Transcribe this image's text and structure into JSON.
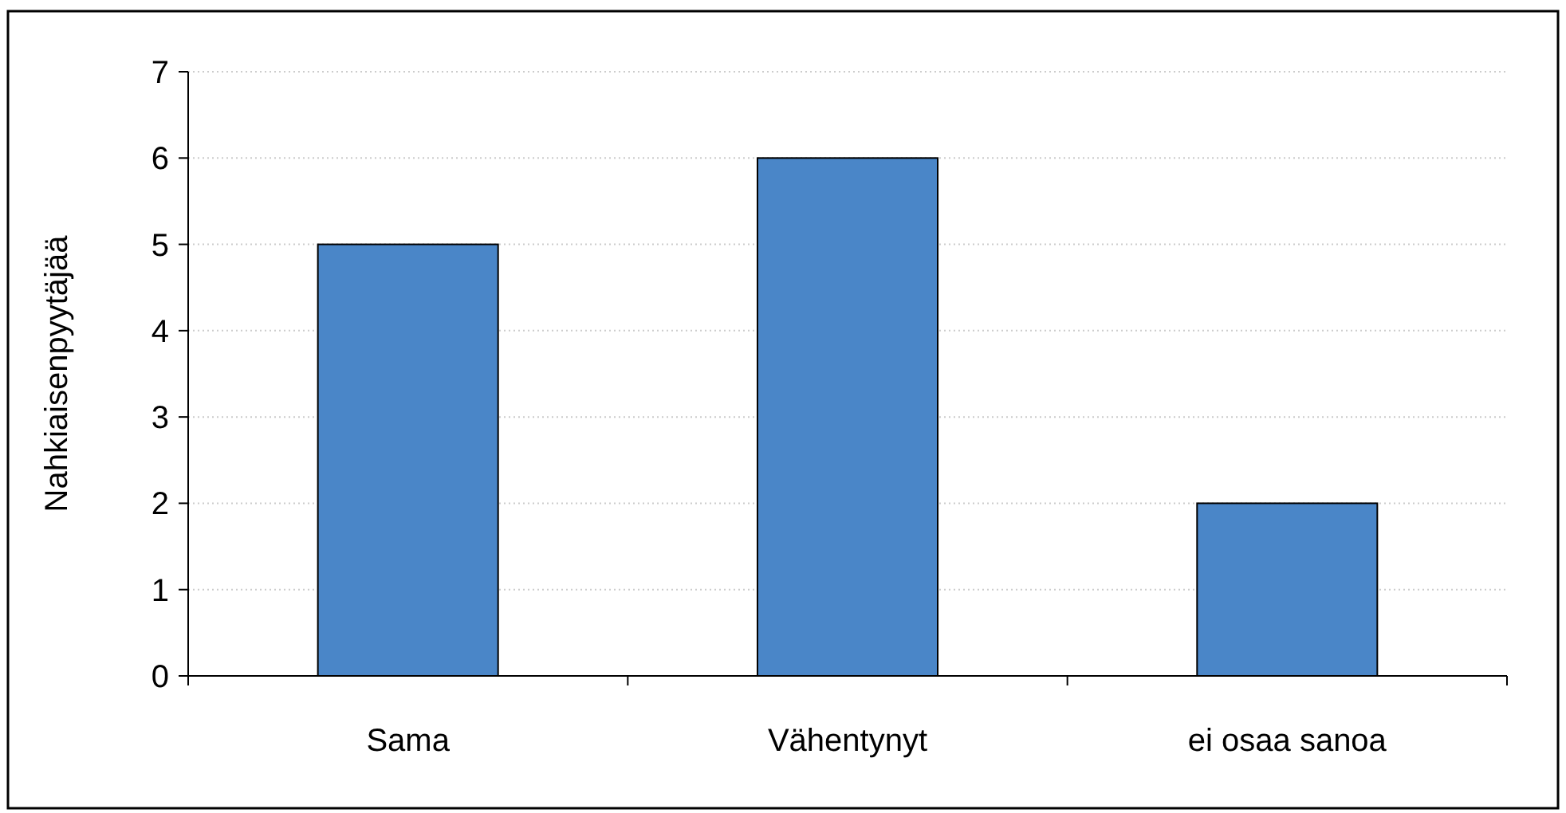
{
  "chart_data": {
    "type": "bar",
    "ylabel": "Nahkiaisenpyytäjää",
    "categories": [
      "Sama",
      "Vähentynyt",
      "ei osaa sanoa"
    ],
    "values": [
      5,
      6,
      2
    ],
    "color": "#4a86c8",
    "ylim": [
      0,
      7
    ],
    "yticks": [
      0,
      1,
      2,
      3,
      4,
      5,
      6,
      7
    ],
    "grid": "y"
  }
}
